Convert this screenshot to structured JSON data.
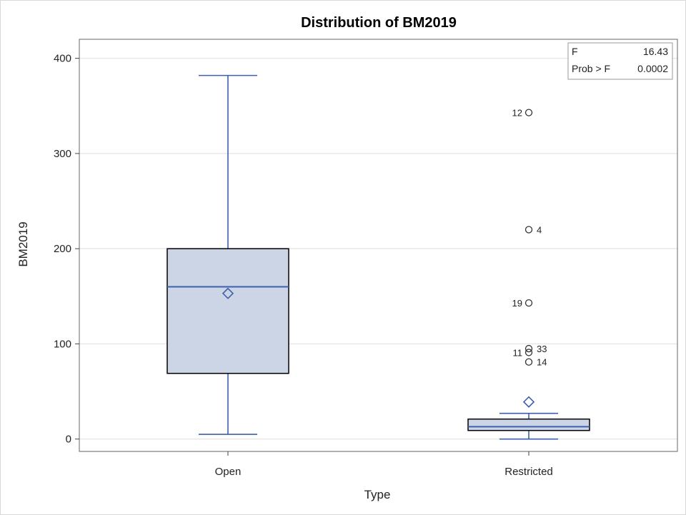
{
  "chart_data": {
    "type": "box",
    "title": "Distribution of BM2019",
    "xlabel": "Type",
    "ylabel": "BM2019",
    "ylim": [
      -13,
      420
    ],
    "yticks": [
      0,
      100,
      200,
      300,
      400
    ],
    "grid": true,
    "categories": [
      "Open",
      "Restricted"
    ],
    "boxes": [
      {
        "category": "Open",
        "whisker_low": 5,
        "q1": 69,
        "median": 160,
        "q3": 200,
        "whisker_high": 382,
        "mean": 153,
        "outliers": []
      },
      {
        "category": "Restricted",
        "whisker_low": 0,
        "q1": 9,
        "median": 13,
        "q3": 21,
        "whisker_high": 27,
        "mean": 39,
        "outliers": [
          {
            "value": 343,
            "label": "12",
            "side": "left"
          },
          {
            "value": 220,
            "label": "4",
            "side": "right"
          },
          {
            "value": 143,
            "label": "19",
            "side": "left"
          },
          {
            "value": 95,
            "label": "33",
            "side": "right"
          },
          {
            "value": 91,
            "label": "11",
            "side": "left"
          },
          {
            "value": 81,
            "label": "14",
            "side": "right"
          }
        ]
      }
    ],
    "inset_table": {
      "rows": [
        {
          "label": "F",
          "value": "16.43"
        },
        {
          "label": "Prob > F",
          "value": "0.0002"
        }
      ],
      "placement": "top-right"
    },
    "colors": {
      "box_fill": "#cbd5e5",
      "box_edge": "#000000",
      "line": "#3e5fae",
      "grid": "#e8e8e8",
      "outlier": "#333333"
    }
  }
}
